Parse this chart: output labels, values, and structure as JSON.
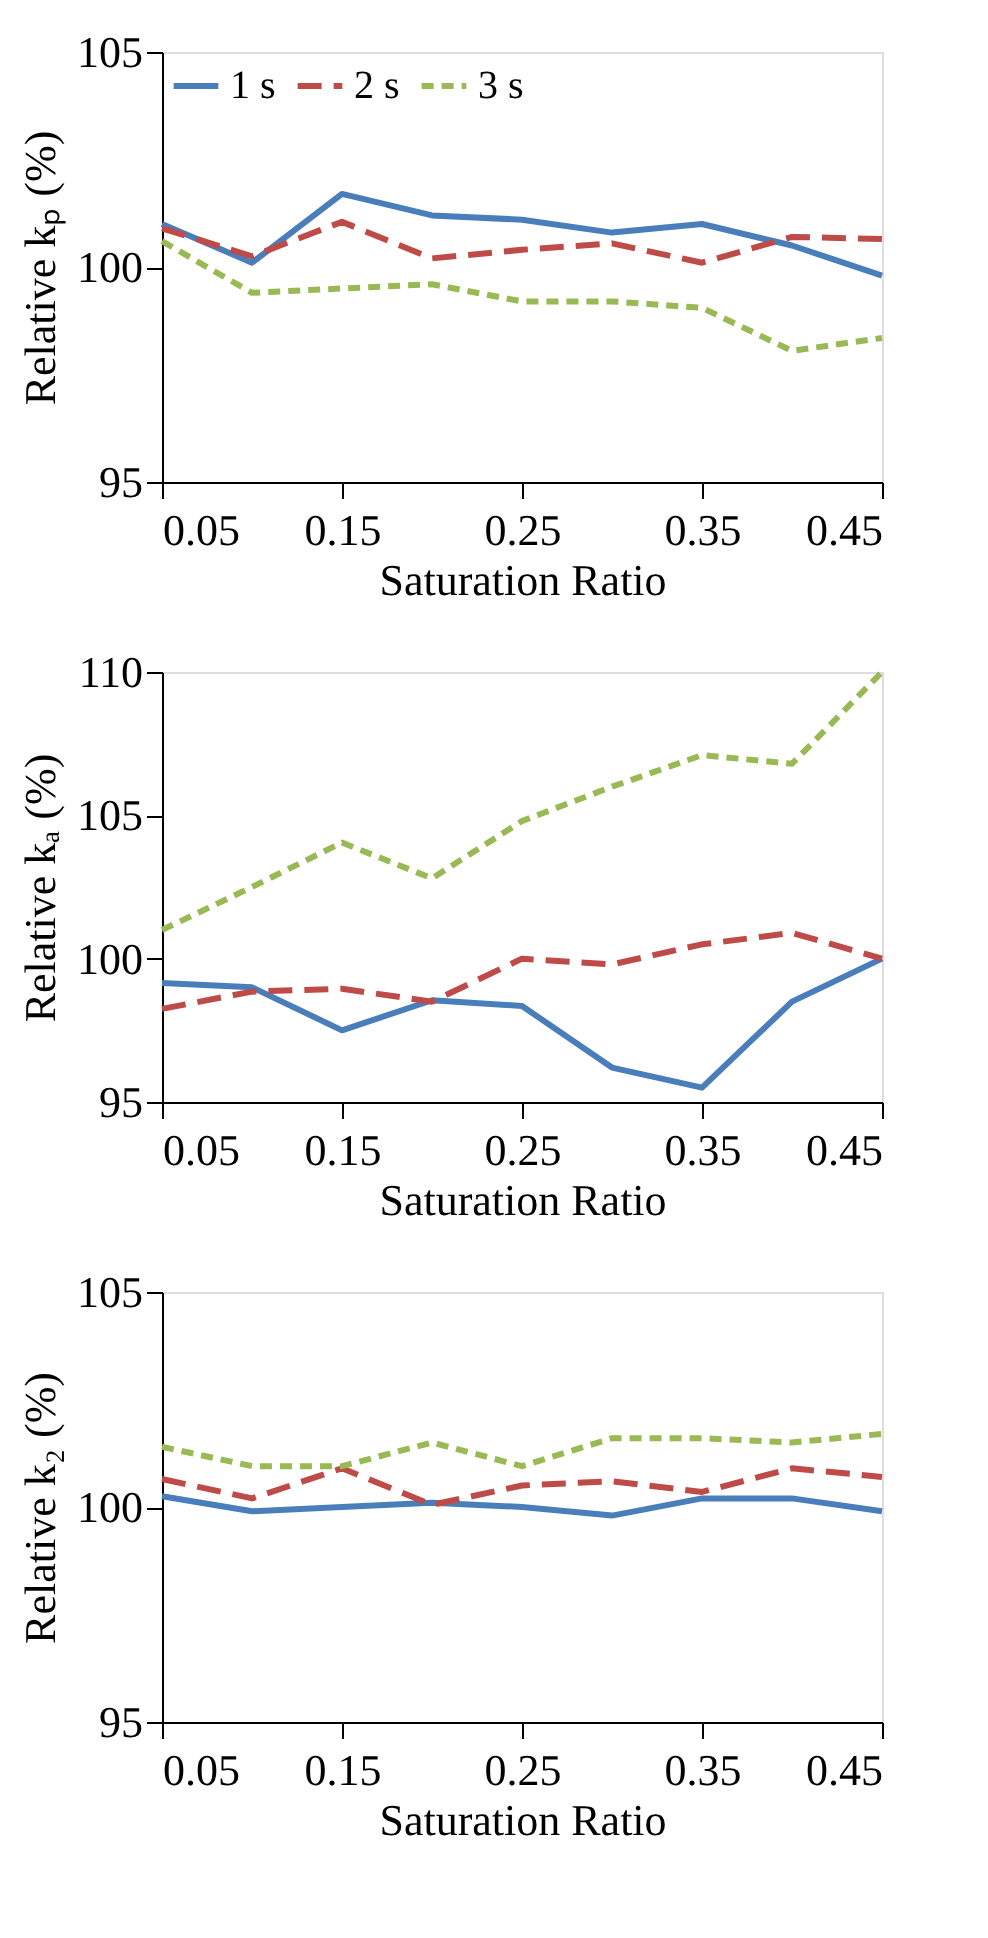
{
  "chart_data": [
    {
      "type": "line",
      "xlabel": "Saturation Ratio",
      "ylabel": "Relative kₚ (%)",
      "x": [
        0.05,
        0.1,
        0.15,
        0.2,
        0.25,
        0.3,
        0.35,
        0.4,
        0.45
      ],
      "xlim": [
        0.05,
        0.45
      ],
      "xticks": [
        0.05,
        0.15,
        0.25,
        0.35,
        0.45
      ],
      "ylim": [
        95,
        105
      ],
      "yticks": [
        95,
        100,
        105
      ],
      "grid": false,
      "legend": "top left",
      "series": [
        {
          "name": "1 s",
          "color": "#4a7ebb",
          "line_style": "solid",
          "values": [
            101.0,
            100.1,
            101.7,
            101.2,
            101.1,
            100.8,
            101.0,
            100.5,
            99.8
          ]
        },
        {
          "name": "2 s",
          "color": "#be4b48",
          "line_style": "dashed",
          "values": [
            100.9,
            100.25,
            101.05,
            100.2,
            100.4,
            100.55,
            100.1,
            100.7,
            100.65
          ]
        },
        {
          "name": "3 s",
          "color": "#98b954",
          "line_style": "dashed",
          "values": [
            100.6,
            99.4,
            99.5,
            99.6,
            99.2,
            99.2,
            99.05,
            98.05,
            98.35
          ]
        }
      ]
    },
    {
      "type": "line",
      "xlabel": "Saturation Ratio",
      "ylabel": "Relative kₐ (%)",
      "x": [
        0.05,
        0.1,
        0.15,
        0.2,
        0.25,
        0.3,
        0.35,
        0.4,
        0.45
      ],
      "xlim": [
        0.05,
        0.45
      ],
      "xticks": [
        0.05,
        0.15,
        0.25,
        0.35,
        0.45
      ],
      "ylim": [
        95,
        110
      ],
      "yticks": [
        95,
        100,
        105,
        110
      ],
      "grid": false,
      "legend": "top left",
      "series": [
        {
          "name": "1 s",
          "color": "#4a7ebb",
          "line_style": "solid",
          "values": [
            99.15,
            99.0,
            97.5,
            98.55,
            98.35,
            96.2,
            95.5,
            98.5,
            100.0
          ]
        },
        {
          "name": "2 s",
          "color": "#be4b48",
          "line_style": "dashed",
          "values": [
            98.25,
            98.85,
            98.95,
            98.5,
            100.0,
            99.8,
            100.5,
            100.9,
            100.0
          ]
        },
        {
          "name": "3 s",
          "color": "#98b954",
          "line_style": "dashed",
          "values": [
            101.0,
            102.5,
            104.05,
            102.8,
            104.8,
            106.0,
            107.1,
            106.8,
            110.0
          ]
        }
      ]
    },
    {
      "type": "line",
      "xlabel": "Saturation Ratio",
      "ylabel": "Relative k₂ (%)",
      "x": [
        0.05,
        0.1,
        0.15,
        0.2,
        0.25,
        0.3,
        0.35,
        0.4,
        0.45
      ],
      "xlim": [
        0.05,
        0.45
      ],
      "xticks": [
        0.05,
        0.15,
        0.25,
        0.35,
        0.45
      ],
      "ylim": [
        95,
        105
      ],
      "yticks": [
        95,
        100,
        105
      ],
      "grid": false,
      "legend": "top left",
      "series": [
        {
          "name": "1 s",
          "color": "#4a7ebb",
          "line_style": "solid",
          "values": [
            100.25,
            99.9,
            100.0,
            100.1,
            100.0,
            99.8,
            100.2,
            100.2,
            99.9
          ]
        },
        {
          "name": "2 s",
          "color": "#be4b48",
          "line_style": "dashed",
          "values": [
            100.65,
            100.2,
            100.9,
            100.05,
            100.5,
            100.6,
            100.35,
            100.9,
            100.7
          ]
        },
        {
          "name": "3 s",
          "color": "#98b954",
          "line_style": "dashed",
          "values": [
            101.4,
            100.95,
            100.95,
            101.5,
            100.95,
            101.6,
            101.6,
            101.5,
            101.7
          ]
        }
      ]
    }
  ]
}
